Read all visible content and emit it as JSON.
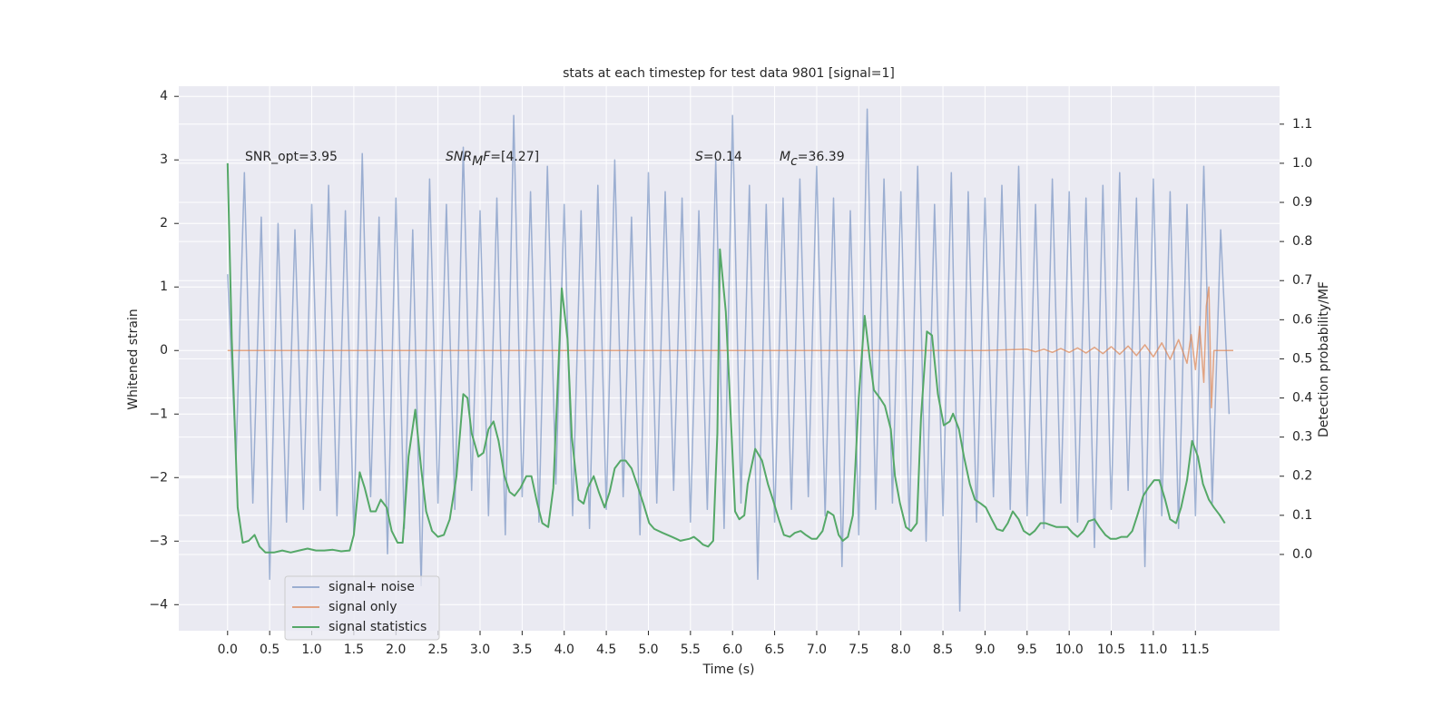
{
  "chart_data": {
    "type": "line",
    "title": "stats at each timestep for test data 9801 [signal=1]",
    "xlabel": "Time (s)",
    "ylabel": "Whitened strain",
    "y2label": "Detection probability/MF",
    "xlim": [
      -0.58,
      12.5
    ],
    "ylim": [
      -4.41,
      4.16
    ],
    "y2lim": [
      -0.195,
      1.197
    ],
    "xticks": [
      {
        "value": 0,
        "label": "0.0"
      },
      0.5,
      {
        "value": 1,
        "label": "1.0"
      },
      1.5,
      {
        "value": 2,
        "label": "2.0"
      },
      2.5,
      {
        "value": 3,
        "label": "3.0"
      },
      3.5,
      {
        "value": 4,
        "label": "4.0"
      },
      4.5,
      {
        "value": 5,
        "label": "5.0"
      },
      5.5,
      {
        "value": 6,
        "label": "6.0"
      },
      6.5,
      {
        "value": 7,
        "label": "7.0"
      },
      7.5,
      {
        "value": 8,
        "label": "8.0"
      },
      8.5,
      {
        "value": 9,
        "label": "9.0"
      },
      9.5,
      {
        "value": 10,
        "label": "10.0"
      },
      10.5,
      {
        "value": 11,
        "label": "11.0"
      },
      11.5
    ],
    "yticks": [
      {
        "value": -4,
        "label": "−4"
      },
      {
        "value": -3,
        "label": "−3"
      },
      {
        "value": -2,
        "label": "−2"
      },
      {
        "value": -1,
        "label": "−1"
      },
      0,
      1,
      2,
      3,
      4
    ],
    "y2ticks": [
      {
        "value": 0,
        "label": "0.0"
      },
      0.1,
      0.2,
      0.3,
      0.4,
      0.5,
      0.6,
      0.7,
      0.8,
      0.9,
      {
        "value": 1,
        "label": "1.0"
      },
      1.1
    ],
    "grid": true,
    "legend": "lower left",
    "annotations": [
      [
        {
          "text": "SNR_opt=3.95"
        }
      ],
      [
        {
          "text": "SNR",
          "style": "italic"
        },
        {
          "text": "M",
          "style": "italic-sub"
        },
        {
          "text": "F",
          "style": "italic"
        },
        {
          "text": "=[4.27]"
        }
      ],
      [
        {
          "text": "S",
          "style": "italic"
        },
        {
          "text": "=0.14"
        }
      ],
      [
        {
          "text": "M",
          "style": "italic"
        },
        {
          "text": "c",
          "style": "italic-sub"
        },
        {
          "text": "=36.39"
        }
      ]
    ],
    "series": [
      {
        "name": "signal+ noise",
        "color": "#4c72b0",
        "opacity": 0.5,
        "x": [
          0,
          0.1,
          0.2,
          0.3,
          0.4,
          0.5,
          0.6,
          0.7,
          0.8,
          0.9,
          1,
          1.1,
          1.2,
          1.3,
          1.4,
          1.5,
          1.6,
          1.7,
          1.8,
          1.9,
          2,
          2.1,
          2.2,
          2.3,
          2.4,
          2.5,
          2.6,
          2.7,
          2.8,
          2.9,
          3,
          3.1,
          3.2,
          3.3,
          3.4,
          3.5,
          3.6,
          3.7,
          3.8,
          3.9,
          4,
          4.1,
          4.2,
          4.3,
          4.4,
          4.5,
          4.6,
          4.7,
          4.8,
          4.9,
          5,
          5.1,
          5.2,
          5.3,
          5.4,
          5.5,
          5.6,
          5.7,
          5.8,
          5.9,
          6,
          6.1,
          6.2,
          6.3,
          6.4,
          6.5,
          6.6,
          6.7,
          6.8,
          6.9,
          7,
          7.1,
          7.2,
          7.3,
          7.4,
          7.5,
          7.6,
          7.7,
          7.8,
          7.9,
          8,
          8.1,
          8.2,
          8.3,
          8.4,
          8.5,
          8.6,
          8.7,
          8.8,
          8.9,
          9,
          9.1,
          9.2,
          9.3,
          9.4,
          9.5,
          9.6,
          9.7,
          9.8,
          9.9,
          10,
          10.1,
          10.2,
          10.3,
          10.4,
          10.5,
          10.6,
          10.7,
          10.8,
          10.9,
          11,
          11.1,
          11.2,
          11.3,
          11.4,
          11.5,
          11.6,
          11.7,
          11.8,
          11.9
        ],
        "values": [
          1.2,
          -1.7,
          2.8,
          -2.4,
          2.1,
          -3.6,
          2.0,
          -2.7,
          1.9,
          -2.5,
          2.3,
          -2.2,
          2.6,
          -2.6,
          2.2,
          -2.9,
          3.1,
          -2.3,
          2.1,
          -3.2,
          2.4,
          -2.8,
          1.9,
          -3.7,
          2.7,
          -2.4,
          2.3,
          -2.5,
          3.2,
          -2.2,
          2.2,
          -2.6,
          2.4,
          -2.9,
          3.7,
          -2.3,
          2.5,
          -2.7,
          2.9,
          -2.1,
          2.3,
          -2.6,
          2.2,
          -2.8,
          2.6,
          -2.5,
          3.0,
          -2.3,
          2.1,
          -2.9,
          2.8,
          -2.4,
          2.5,
          -2.2,
          2.4,
          -2.7,
          2.2,
          -2.5,
          3.0,
          -2.8,
          3.7,
          -2.4,
          2.6,
          -3.6,
          2.3,
          -2.7,
          2.4,
          -2.5,
          2.7,
          -2.3,
          2.9,
          -2.6,
          2.4,
          -3.4,
          2.2,
          -2.9,
          3.8,
          -2.5,
          2.7,
          -2.4,
          2.5,
          -2.8,
          2.9,
          -3.0,
          2.3,
          -2.6,
          2.8,
          -4.1,
          2.5,
          -2.7,
          2.4,
          -2.3,
          2.6,
          -2.5,
          2.9,
          -2.6,
          2.3,
          -2.8,
          2.7,
          -2.4,
          2.5,
          -2.7,
          2.4,
          -3.1,
          2.6,
          -2.5,
          2.8,
          -2.2,
          2.4,
          -3.4,
          2.7,
          -2.6,
          2.5,
          -2.8,
          2.3,
          -2.6,
          2.9,
          -2.4,
          1.9,
          -1.0
        ]
      },
      {
        "name": "signal only",
        "color": "#dd8452",
        "opacity": 0.7,
        "x": [
          0,
          9.0,
          9.5,
          9.6,
          9.7,
          9.8,
          9.9,
          10.0,
          10.1,
          10.2,
          10.3,
          10.4,
          10.5,
          10.6,
          10.7,
          10.8,
          10.9,
          11.0,
          11.1,
          11.2,
          11.3,
          11.4,
          11.45,
          11.5,
          11.55,
          11.6,
          11.63,
          11.66,
          11.69,
          11.72,
          11.95
        ],
        "values": [
          0,
          0,
          0.02,
          -0.02,
          0.02,
          -0.03,
          0.03,
          -0.03,
          0.04,
          -0.04,
          0.05,
          -0.05,
          0.06,
          -0.06,
          0.07,
          -0.08,
          0.09,
          -0.1,
          0.12,
          -0.14,
          0.17,
          -0.2,
          0.25,
          -0.3,
          0.38,
          -0.5,
          0.7,
          1.0,
          -0.9,
          0,
          0
        ]
      },
      {
        "name": "signal statistics",
        "color": "#55a868",
        "opacity": 1,
        "axis": "y2",
        "x": [
          0,
          0.05,
          0.12,
          0.18,
          0.25,
          0.32,
          0.38,
          0.45,
          0.55,
          0.65,
          0.75,
          0.85,
          0.95,
          1.05,
          1.15,
          1.25,
          1.35,
          1.45,
          1.5,
          1.57,
          1.63,
          1.7,
          1.76,
          1.82,
          1.89,
          1.95,
          2.02,
          2.08,
          2.15,
          2.23,
          2.3,
          2.36,
          2.43,
          2.5,
          2.57,
          2.64,
          2.72,
          2.8,
          2.85,
          2.9,
          2.98,
          3.04,
          3.1,
          3.16,
          3.22,
          3.29,
          3.35,
          3.41,
          3.48,
          3.55,
          3.61,
          3.68,
          3.74,
          3.81,
          3.87,
          3.97,
          4.04,
          4.09,
          4.17,
          4.23,
          4.28,
          4.35,
          4.41,
          4.48,
          4.54,
          4.6,
          4.67,
          4.73,
          4.8,
          4.88,
          4.94,
          5.01,
          5.07,
          5.17,
          5.28,
          5.33,
          5.38,
          5.49,
          5.54,
          5.6,
          5.65,
          5.71,
          5.77,
          5.82,
          5.85,
          5.92,
          5.99,
          6.03,
          6.08,
          6.14,
          6.18,
          6.27,
          6.35,
          6.42,
          6.48,
          6.55,
          6.61,
          6.68,
          6.74,
          6.81,
          6.87,
          6.94,
          7.0,
          7.07,
          7.13,
          7.2,
          7.26,
          7.31,
          7.37,
          7.43,
          7.5,
          7.57,
          7.63,
          7.68,
          7.75,
          7.81,
          7.88,
          7.93,
          7.99,
          8.06,
          8.12,
          8.19,
          8.24,
          8.31,
          8.37,
          8.44,
          8.51,
          8.58,
          8.62,
          8.69,
          8.75,
          8.82,
          8.88,
          8.95,
          9.01,
          9.08,
          9.14,
          9.21,
          9.27,
          9.33,
          9.4,
          9.46,
          9.53,
          9.59,
          9.66,
          9.72,
          9.78,
          9.85,
          9.91,
          9.98,
          10.04,
          10.1,
          10.17,
          10.23,
          10.3,
          10.36,
          10.43,
          10.49,
          10.56,
          10.62,
          10.69,
          10.75,
          10.81,
          10.88,
          10.94,
          11.01,
          11.07,
          11.14,
          11.2,
          11.27,
          11.33,
          11.4,
          11.46,
          11.53,
          11.59,
          11.66,
          11.72,
          11.79,
          11.85
        ],
        "values": [
          1.0,
          0.55,
          0.12,
          0.03,
          0.035,
          0.05,
          0.02,
          0.005,
          0.005,
          0.01,
          0.005,
          0.01,
          0.015,
          0.01,
          0.01,
          0.012,
          0.008,
          0.01,
          0.05,
          0.21,
          0.17,
          0.11,
          0.11,
          0.14,
          0.12,
          0.06,
          0.03,
          0.03,
          0.25,
          0.37,
          0.22,
          0.11,
          0.06,
          0.045,
          0.05,
          0.09,
          0.2,
          0.41,
          0.4,
          0.31,
          0.25,
          0.26,
          0.32,
          0.34,
          0.29,
          0.2,
          0.16,
          0.15,
          0.17,
          0.2,
          0.2,
          0.13,
          0.08,
          0.07,
          0.17,
          0.68,
          0.55,
          0.3,
          0.14,
          0.13,
          0.17,
          0.2,
          0.16,
          0.12,
          0.16,
          0.22,
          0.24,
          0.24,
          0.22,
          0.17,
          0.13,
          0.08,
          0.065,
          0.055,
          0.045,
          0.04,
          0.035,
          0.04,
          0.045,
          0.035,
          0.025,
          0.02,
          0.035,
          0.31,
          0.78,
          0.62,
          0.3,
          0.11,
          0.09,
          0.1,
          0.18,
          0.27,
          0.24,
          0.18,
          0.14,
          0.09,
          0.05,
          0.045,
          0.055,
          0.06,
          0.05,
          0.04,
          0.04,
          0.06,
          0.11,
          0.1,
          0.05,
          0.035,
          0.045,
          0.1,
          0.4,
          0.61,
          0.5,
          0.42,
          0.4,
          0.38,
          0.32,
          0.2,
          0.13,
          0.07,
          0.06,
          0.08,
          0.35,
          0.57,
          0.56,
          0.41,
          0.33,
          0.34,
          0.36,
          0.32,
          0.25,
          0.18,
          0.14,
          0.13,
          0.12,
          0.09,
          0.065,
          0.06,
          0.08,
          0.11,
          0.09,
          0.06,
          0.05,
          0.06,
          0.08,
          0.08,
          0.075,
          0.07,
          0.07,
          0.07,
          0.055,
          0.045,
          0.06,
          0.085,
          0.09,
          0.07,
          0.05,
          0.04,
          0.04,
          0.045,
          0.045,
          0.06,
          0.1,
          0.15,
          0.17,
          0.19,
          0.19,
          0.14,
          0.09,
          0.08,
          0.12,
          0.19,
          0.29,
          0.25,
          0.18,
          0.14,
          0.12,
          0.1,
          0.08
        ]
      }
    ]
  }
}
